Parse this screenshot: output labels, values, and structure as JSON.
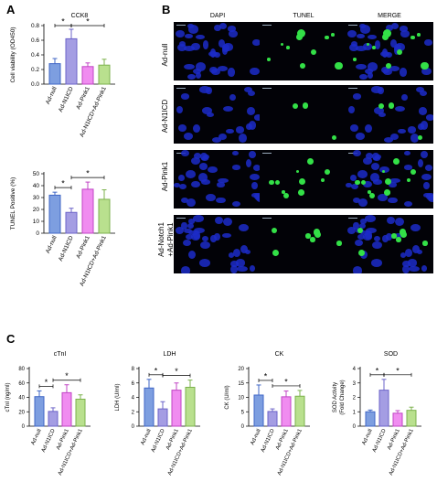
{
  "panels": {
    "a": "A",
    "b": "B",
    "c": "C"
  },
  "categories": [
    "Ad-null",
    "Ad-N1ICD",
    "Ad-Pink1",
    "Ad-N1ICD+Ad-Pink1"
  ],
  "colors": {
    "bar_fills": [
      "#7d9ee0",
      "#a49de3",
      "#f08cf0",
      "#b9e08e"
    ],
    "bar_edges": [
      "#3f66c6",
      "#6b63c8",
      "#c044c4",
      "#7cb24c"
    ],
    "dapi": "#1c2cc8",
    "tunel": "#33e047",
    "background": "#020207"
  },
  "microscopy": {
    "columns": [
      "DAPI",
      "TUNEL",
      "MERGE"
    ],
    "rows": [
      "Ad-null",
      "Ad-N1ICD",
      "Ad-Pink1",
      "Ad-Notch1\n+Ad-Pink1"
    ]
  },
  "chart_data": [
    {
      "id": "cck8",
      "type": "bar",
      "title": "CCK8",
      "ylabel": "Cell viability (OD450)",
      "ylim": [
        0,
        0.8
      ],
      "yticks": [
        0.0,
        0.2,
        0.4,
        0.6,
        0.8
      ],
      "yticklabels": [
        "0.0",
        "0.2",
        "0.4",
        "0.6",
        "0.8"
      ],
      "values": [
        0.28,
        0.62,
        0.24,
        0.26
      ],
      "errors": [
        0.07,
        0.13,
        0.05,
        0.08
      ],
      "significance": [
        {
          "from": 0,
          "to": 1,
          "label": "*"
        },
        {
          "from": 1,
          "to": 3,
          "label": "*"
        }
      ]
    },
    {
      "id": "tunel",
      "type": "bar",
      "title": "",
      "ylabel": "TUNEL Positive (%)",
      "ylim": [
        0,
        50
      ],
      "yticks": [
        0,
        10,
        20,
        30,
        40,
        50
      ],
      "yticklabels": [
        "0",
        "10",
        "20",
        "30",
        "40",
        "50"
      ],
      "values": [
        32,
        17.5,
        37,
        28.5
      ],
      "errors": [
        2.5,
        3.5,
        6,
        8
      ],
      "significance": [
        {
          "from": 0,
          "to": 1,
          "label": "*"
        },
        {
          "from": 1,
          "to": 3,
          "label": "*"
        }
      ]
    },
    {
      "id": "ctni",
      "type": "bar",
      "title": "cTnI",
      "ylabel": "cTnI (ng/ml)",
      "ylim": [
        0,
        80
      ],
      "yticks": [
        0,
        20,
        40,
        60,
        80
      ],
      "yticklabels": [
        "0",
        "20",
        "40",
        "60",
        "80"
      ],
      "values": [
        41,
        20.5,
        46.5,
        37.5
      ],
      "errors": [
        8,
        5,
        11,
        6
      ],
      "significance": [
        {
          "from": 0,
          "to": 1,
          "label": "*"
        },
        {
          "from": 1,
          "to": 3,
          "label": "*"
        }
      ]
    },
    {
      "id": "ldh",
      "type": "bar",
      "title": "LDH",
      "ylabel": "LDH (U/ml)",
      "ylim": [
        0,
        8
      ],
      "yticks": [
        0,
        2,
        4,
        6,
        8
      ],
      "yticklabels": [
        "0",
        "2",
        "4",
        "6",
        "8"
      ],
      "values": [
        5.3,
        2.4,
        5.0,
        5.4
      ],
      "errors": [
        1.2,
        1.0,
        1.0,
        1.0
      ],
      "significance": [
        {
          "from": 0,
          "to": 1,
          "label": "*"
        },
        {
          "from": 1,
          "to": 3,
          "label": "*"
        }
      ]
    },
    {
      "id": "ck",
      "type": "bar",
      "title": "CK",
      "ylabel": "CK (U/ml)",
      "ylim": [
        0,
        20
      ],
      "yticks": [
        0,
        5,
        10,
        15,
        20
      ],
      "yticklabels": [
        "0",
        "5",
        "10",
        "15",
        "20"
      ],
      "values": [
        10.8,
        5.1,
        10.2,
        10.4
      ],
      "errors": [
        3.5,
        0.9,
        2.0,
        2.0
      ],
      "significance": [
        {
          "from": 0,
          "to": 1,
          "label": "*"
        },
        {
          "from": 1,
          "to": 3,
          "label": "*"
        }
      ]
    },
    {
      "id": "sod",
      "type": "bar",
      "title": "SOD",
      "ylabel": "SOD Activity\n(Fold Change)",
      "ylim": [
        0,
        4
      ],
      "yticks": [
        0,
        1,
        2,
        3,
        4
      ],
      "yticklabels": [
        "0",
        "1",
        "2",
        "3",
        "4"
      ],
      "values": [
        1.0,
        2.5,
        0.9,
        1.1
      ],
      "errors": [
        0.12,
        0.75,
        0.18,
        0.22
      ],
      "significance": [
        {
          "from": 0,
          "to": 1,
          "label": "*"
        },
        {
          "from": 1,
          "to": 3,
          "label": "*"
        }
      ]
    }
  ]
}
